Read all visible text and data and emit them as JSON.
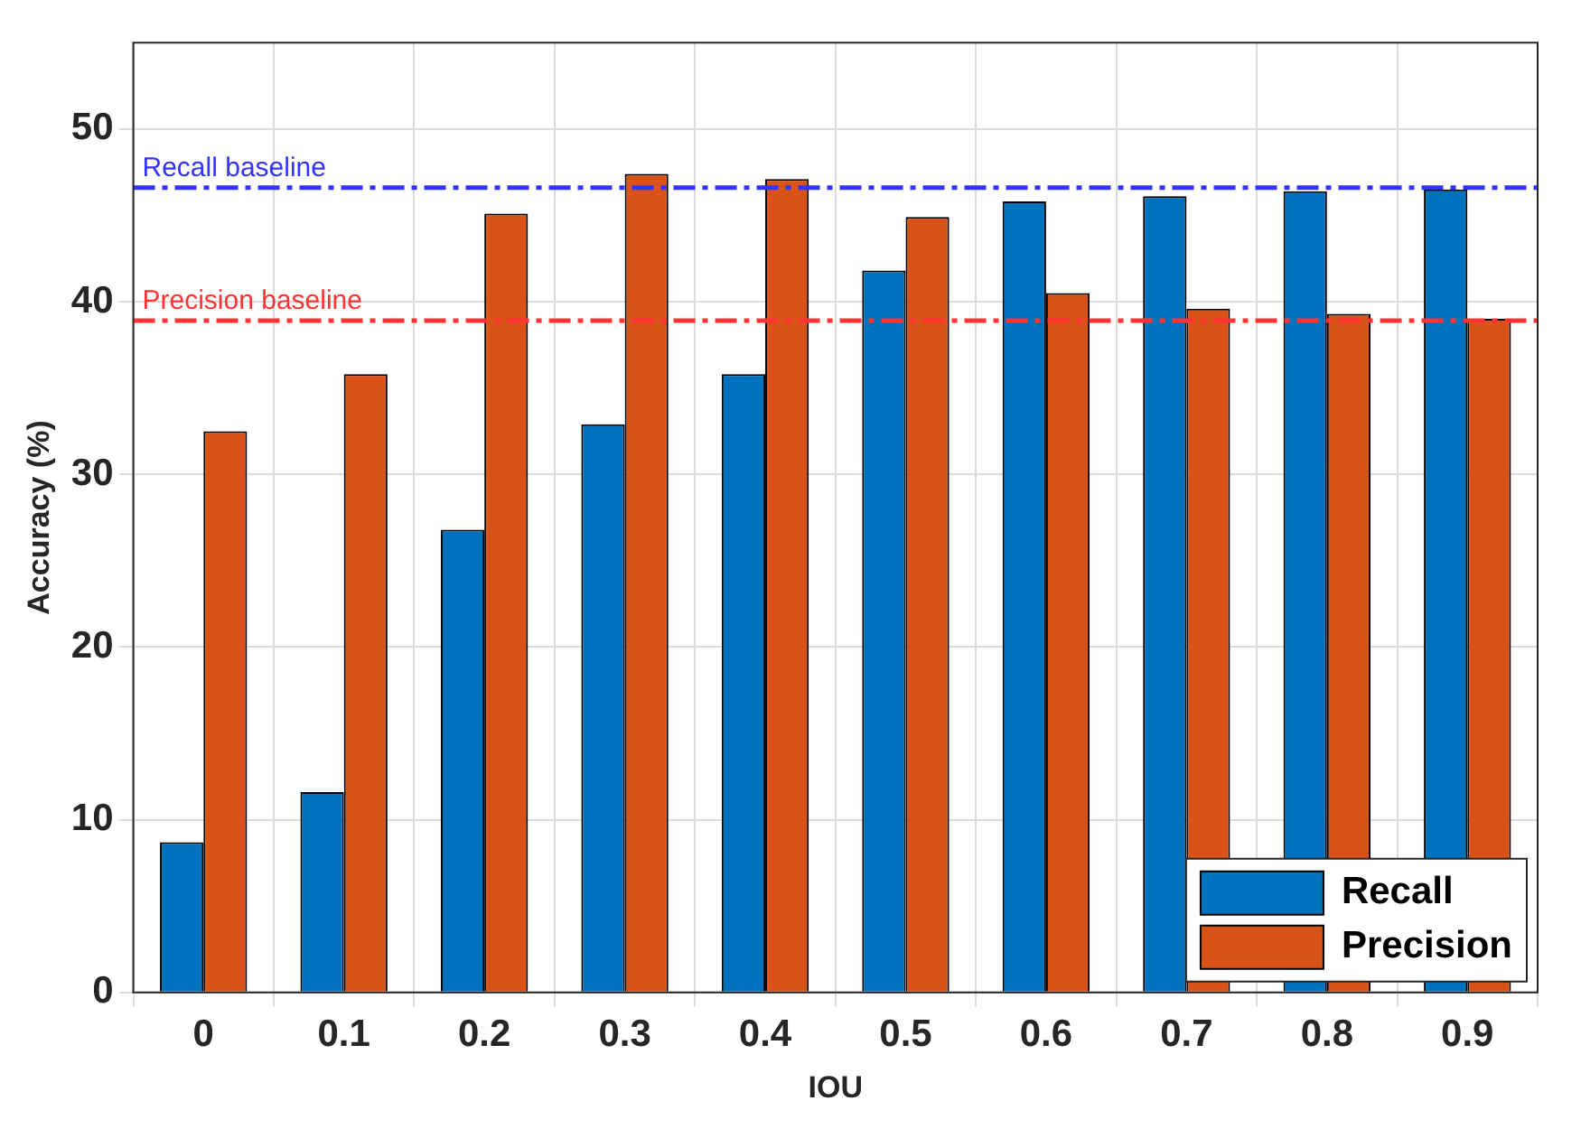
{
  "chart_data": {
    "type": "bar",
    "xlabel": "IOU",
    "ylabel": "Accuracy (%)",
    "categories": [
      "0",
      "0.1",
      "0.2",
      "0.3",
      "0.4",
      "0.5",
      "0.6",
      "0.7",
      "0.8",
      "0.9"
    ],
    "series": [
      {
        "name": "Recall",
        "color": "#0072bd",
        "values": [
          8.7,
          11.6,
          26.8,
          32.9,
          35.8,
          41.8,
          45.8,
          46.1,
          46.4,
          46.5
        ]
      },
      {
        "name": "Precision",
        "color": "#d95319",
        "values": [
          32.5,
          35.8,
          45.1,
          47.4,
          47.1,
          44.9,
          40.5,
          39.6,
          39.3,
          39.0
        ]
      }
    ],
    "ylim": [
      0,
      55
    ],
    "yticks": [
      0,
      10,
      20,
      30,
      40,
      50
    ],
    "grid": true,
    "legend": "bottom right",
    "ref_lines": [
      {
        "axis": "y",
        "value": 46.6,
        "label": "Recall baseline",
        "color": "#3333ff",
        "line_style": "dashed"
      },
      {
        "axis": "y",
        "value": 38.9,
        "label": "Precision baseline",
        "color": "#ff3333",
        "line_style": "dashed"
      }
    ]
  }
}
